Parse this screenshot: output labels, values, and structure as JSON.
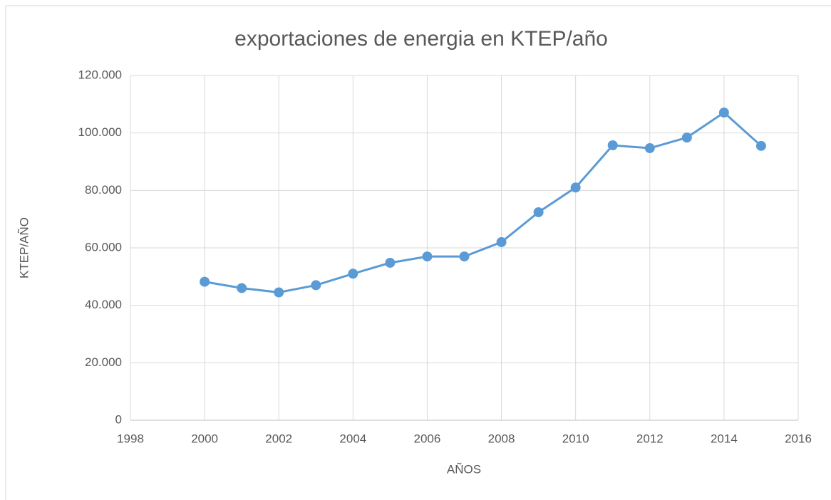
{
  "chart_data": {
    "type": "line",
    "title": "exportaciones de energia en KTEP/año",
    "xlabel": "AÑOS",
    "ylabel": "KTEP/AÑO",
    "x": [
      2000,
      2001,
      2002,
      2003,
      2004,
      2005,
      2006,
      2007,
      2008,
      2009,
      2010,
      2011,
      2012,
      2013,
      2014,
      2015
    ],
    "series": [
      {
        "name": "exportaciones",
        "color": "#5b9bd5",
        "values": [
          48200,
          46000,
          44500,
          47000,
          51000,
          54800,
          57000,
          57000,
          62000,
          72400,
          81000,
          95700,
          94700,
          98400,
          107100,
          95500
        ]
      }
    ],
    "xlim": [
      1998,
      2016
    ],
    "xticks": [
      1998,
      2000,
      2002,
      2004,
      2006,
      2008,
      2010,
      2012,
      2014,
      2016
    ],
    "ylim": [
      0,
      120000
    ],
    "yticks": [
      0,
      {
        "value": 20000,
        "label": "20.000"
      },
      {
        "value": 40000,
        "label": "40.000"
      },
      {
        "value": 60000,
        "label": "60.000"
      },
      {
        "value": 80000,
        "label": "80.000"
      },
      {
        "value": 100000,
        "label": "100.000"
      },
      {
        "value": 120000,
        "label": "120.000"
      }
    ],
    "grid": true
  }
}
